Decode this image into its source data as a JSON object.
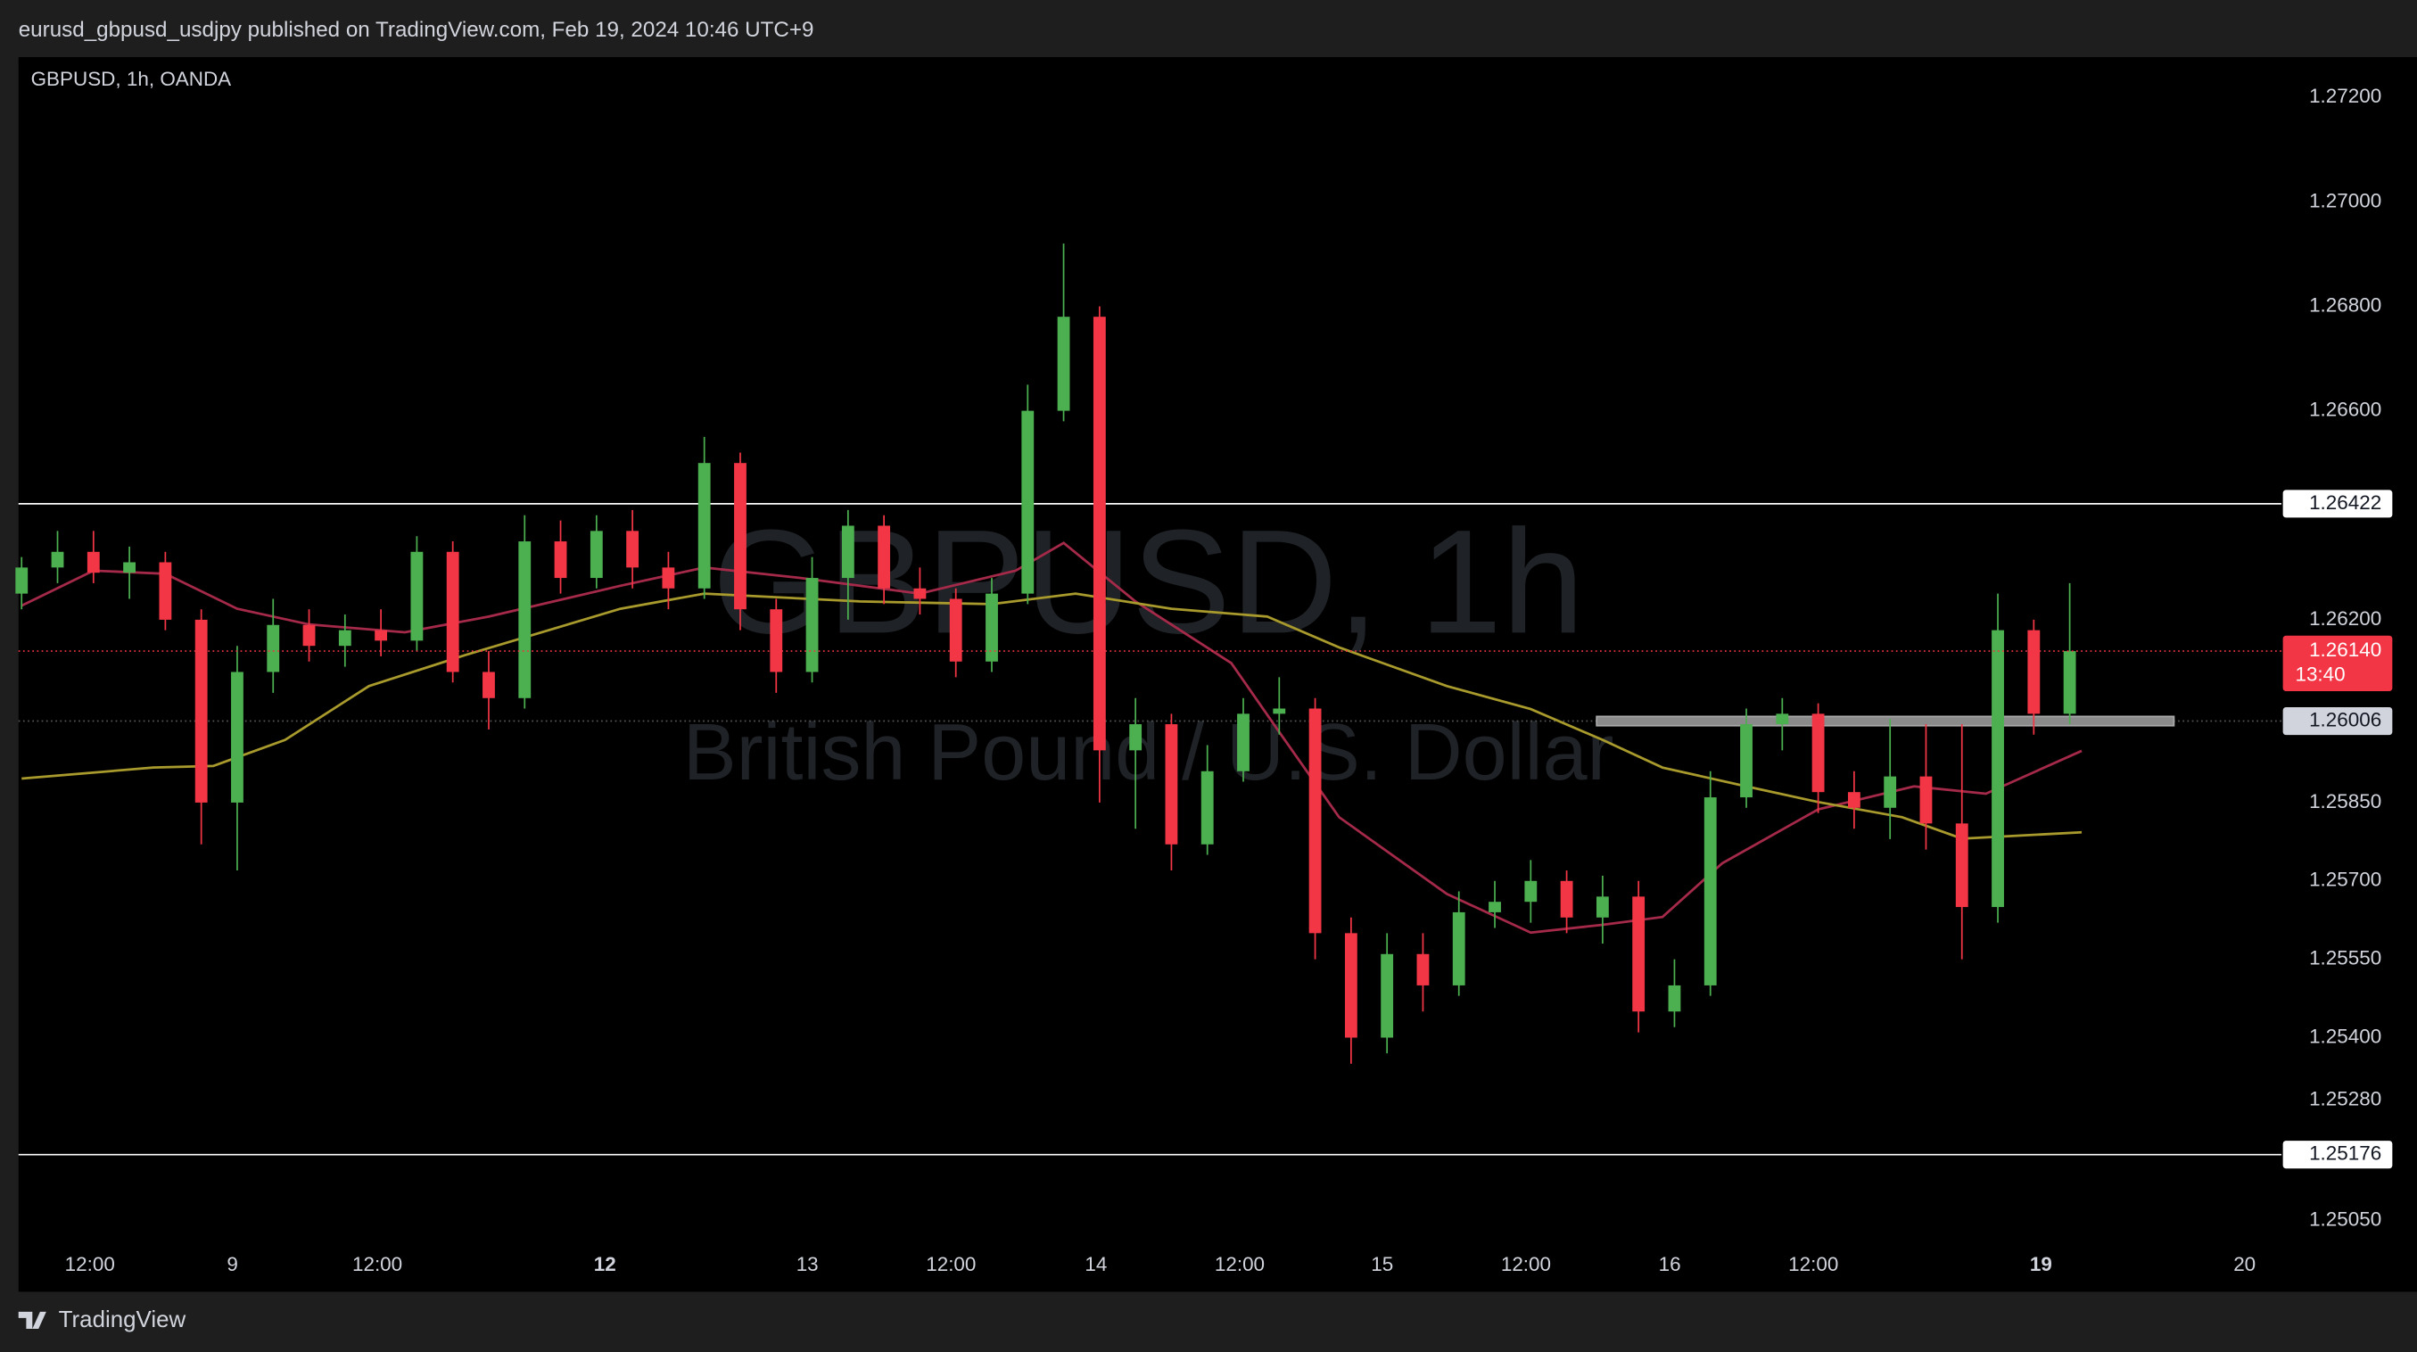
{
  "header": {
    "text": "eurusd_gbpusd_usdjpy published on TradingView.com, Feb 19, 2024 10:46 UTC+9"
  },
  "footer": {
    "brand": "TradingView"
  },
  "chart_data": {
    "type": "candlestick",
    "title": "GBPUSD, 1h, OANDA",
    "watermark": "GBPUSD, 1h",
    "watermark_subtitle": "British Pound / U.S. Dollar",
    "up_color": "#4caf50",
    "down_color": "#f23645",
    "x": [
      0,
      3,
      6,
      9,
      12,
      15,
      18,
      21,
      24,
      27,
      30,
      33,
      36,
      39,
      42,
      45,
      48,
      51,
      54,
      57,
      60,
      63,
      66,
      69,
      72,
      75,
      78,
      81,
      84,
      87,
      90,
      93,
      96,
      99,
      102,
      105,
      108,
      111,
      114,
      117,
      120,
      123,
      126,
      129,
      132,
      135,
      138,
      141,
      144,
      147,
      150,
      153,
      156,
      159,
      162,
      165,
      168,
      171
    ],
    "open": [
      1.2625,
      1.263,
      1.2633,
      1.2629,
      1.2631,
      1.262,
      1.2585,
      1.261,
      1.2619,
      1.2615,
      1.2618,
      1.2616,
      1.2633,
      1.261,
      1.2605,
      1.2635,
      1.2628,
      1.2637,
      1.263,
      1.2626,
      1.265,
      1.2622,
      1.261,
      1.2628,
      1.2638,
      1.2626,
      1.2624,
      1.2612,
      1.2625,
      1.266,
      1.2678,
      1.2595,
      1.26,
      1.2577,
      1.2591,
      1.2602,
      1.2603,
      1.256,
      1.254,
      1.2556,
      1.255,
      1.2564,
      1.2566,
      1.257,
      1.2563,
      1.2567,
      1.2545,
      1.255,
      1.2586,
      1.26,
      1.2602,
      1.2587,
      1.2584,
      1.259,
      1.2581,
      1.2565,
      1.2618,
      1.2602
    ],
    "high": [
      1.2632,
      1.2637,
      1.2637,
      1.2634,
      1.2633,
      1.2622,
      1.2615,
      1.2624,
      1.2622,
      1.2621,
      1.2622,
      1.2636,
      1.2635,
      1.2614,
      1.264,
      1.2639,
      1.264,
      1.2641,
      1.2633,
      1.2655,
      1.2652,
      1.2624,
      1.2632,
      1.2641,
      1.264,
      1.263,
      1.2626,
      1.2628,
      1.2665,
      1.2692,
      1.268,
      1.2605,
      1.2602,
      1.2596,
      1.2605,
      1.2609,
      1.2605,
      1.2563,
      1.256,
      1.256,
      1.2568,
      1.257,
      1.2574,
      1.2572,
      1.2571,
      1.257,
      1.2555,
      1.2591,
      1.2603,
      1.2605,
      1.2604,
      1.2591,
      1.2601,
      1.26,
      1.26,
      1.2625,
      1.262,
      1.2627
    ],
    "low": [
      1.2622,
      1.2627,
      1.2627,
      1.2624,
      1.2618,
      1.2577,
      1.2572,
      1.2606,
      1.2612,
      1.2611,
      1.2613,
      1.2614,
      1.2608,
      1.2599,
      1.2603,
      1.2625,
      1.2626,
      1.2626,
      1.2622,
      1.2624,
      1.2618,
      1.2606,
      1.2608,
      1.262,
      1.2623,
      1.2621,
      1.2609,
      1.261,
      1.2623,
      1.2658,
      1.2585,
      1.258,
      1.2572,
      1.2575,
      1.2589,
      1.2598,
      1.2555,
      1.2535,
      1.2537,
      1.2545,
      1.2548,
      1.2561,
      1.2562,
      1.256,
      1.2558,
      1.2541,
      1.2542,
      1.2548,
      1.2584,
      1.2595,
      1.2583,
      1.258,
      1.2578,
      1.2576,
      1.2555,
      1.2562,
      1.2598,
      1.26
    ],
    "close": [
      1.263,
      1.2633,
      1.2629,
      1.2631,
      1.262,
      1.2585,
      1.261,
      1.2619,
      1.2615,
      1.2618,
      1.2616,
      1.2633,
      1.261,
      1.2605,
      1.2635,
      1.2628,
      1.2637,
      1.263,
      1.2626,
      1.265,
      1.2622,
      1.261,
      1.2628,
      1.2638,
      1.2626,
      1.2624,
      1.2612,
      1.2625,
      1.266,
      1.2678,
      1.2595,
      1.26,
      1.2577,
      1.2591,
      1.2602,
      1.2603,
      1.256,
      1.254,
      1.2556,
      1.255,
      1.2564,
      1.2566,
      1.257,
      1.2563,
      1.2567,
      1.2545,
      1.255,
      1.2586,
      1.26,
      1.2602,
      1.2587,
      1.2584,
      1.259,
      1.2581,
      1.2565,
      1.2618,
      1.2602,
      1.2614
    ],
    "moving_averages": [
      {
        "color": "#a52a4a",
        "x": [
          0,
          6,
          12,
          18,
          24,
          32,
          39,
          50,
          57,
          65,
          75,
          83,
          87,
          93,
          101,
          105,
          110,
          119,
          126,
          132,
          137,
          142,
          150,
          158,
          164,
          172
        ],
        "values": [
          1.26227,
          1.26294,
          1.26288,
          1.26221,
          1.26191,
          1.26176,
          1.26206,
          1.26265,
          1.263,
          1.2628,
          1.2625,
          1.26294,
          1.26347,
          1.26235,
          1.26117,
          1.25985,
          1.25822,
          1.25675,
          1.25601,
          1.25616,
          1.25631,
          1.25734,
          1.25837,
          1.25881,
          1.25867,
          1.25949
        ]
      },
      {
        "color": "#a89a2c",
        "x": [
          0,
          11,
          16,
          22,
          29,
          37,
          50,
          57,
          70,
          81,
          88,
          96,
          104,
          110,
          119,
          126,
          132,
          137,
          144,
          150,
          157,
          162,
          172
        ],
        "values": [
          1.25896,
          1.25917,
          1.2592,
          1.2597,
          1.26073,
          1.26132,
          1.26221,
          1.2625,
          1.26235,
          1.2623,
          1.2625,
          1.26221,
          1.26206,
          1.26147,
          1.26073,
          1.26029,
          1.2597,
          1.25917,
          1.25881,
          1.25851,
          1.25822,
          1.25781,
          1.25793
        ]
      }
    ],
    "levels": [
      {
        "value": 1.26422,
        "label": "1.26422",
        "color": "#ffffff"
      },
      {
        "value": 1.25176,
        "label": "1.25176",
        "color": "#ffffff"
      }
    ],
    "zone": {
      "value": 1.26006,
      "label": "1.26006",
      "x": [
        131.5,
        179.7
      ],
      "color": "#8a8a8a"
    },
    "last_price": {
      "value": 1.2614,
      "label": "1.26140",
      "countdown": "13:40",
      "color": "#f23645"
    },
    "xlim": [
      -0.26,
      188.67
    ],
    "ylim": [
      1.25002,
      1.27277
    ],
    "xticks": [
      {
        "value": 5.7,
        "label": "12:00"
      },
      {
        "value": 17.6,
        "label": "9"
      },
      {
        "value": 29.7,
        "label": "12:00"
      },
      {
        "value": 48.7,
        "label": "12"
      },
      {
        "value": 65.6,
        "label": "13"
      },
      {
        "value": 77.6,
        "label": "12:00"
      },
      {
        "value": 89.7,
        "label": "14"
      },
      {
        "value": 101.7,
        "label": "12:00"
      },
      {
        "value": 113.6,
        "label": "15"
      },
      {
        "value": 125.6,
        "label": "12:00"
      },
      {
        "value": 137.6,
        "label": "16"
      },
      {
        "value": 149.6,
        "label": "12:00"
      },
      {
        "value": 168.6,
        "label": "19"
      },
      {
        "value": 185.6,
        "label": "20"
      }
    ],
    "yticks": [
      {
        "value": 1.272,
        "label": "1.27200"
      },
      {
        "value": 1.27,
        "label": "1.27000"
      },
      {
        "value": 1.268,
        "label": "1.26800"
      },
      {
        "value": 1.266,
        "label": "1.26600"
      },
      {
        "value": 1.262,
        "label": "1.26200"
      },
      {
        "value": 1.2585,
        "label": "1.25850"
      },
      {
        "value": 1.257,
        "label": "1.25700"
      },
      {
        "value": 1.2555,
        "label": "1.25550"
      },
      {
        "value": 1.254,
        "label": "1.25400"
      },
      {
        "value": 1.2528,
        "label": "1.25280"
      },
      {
        "value": 1.2505,
        "label": "1.25050"
      }
    ]
  }
}
